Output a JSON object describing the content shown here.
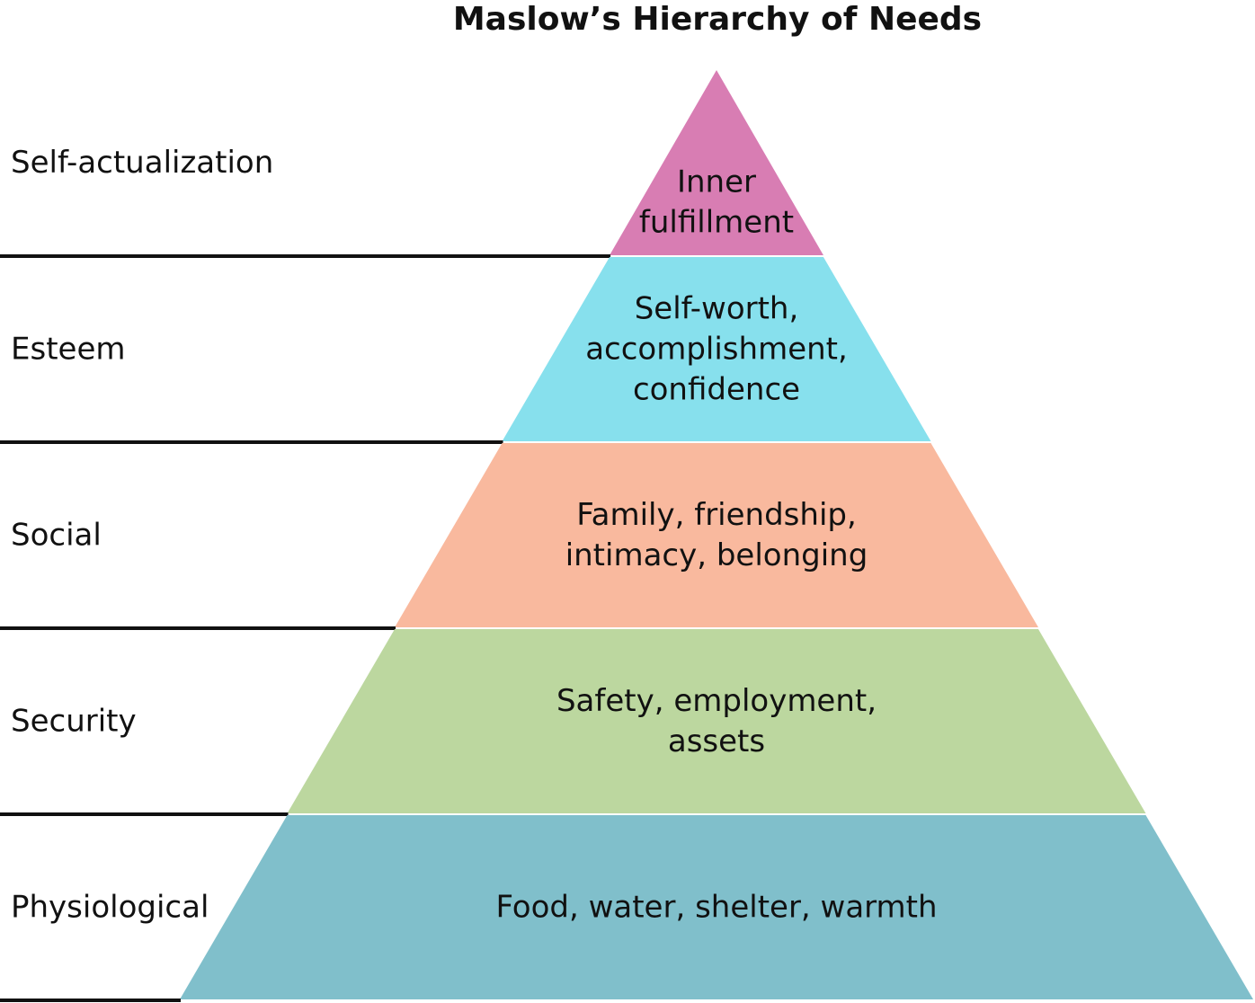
{
  "title": "Maslow’s Hierarchy of Needs",
  "levels": [
    {
      "label": "Self-actualization",
      "lines": [
        "Inner",
        "fulfillment"
      ],
      "color": "#d87db3"
    },
    {
      "label": "Esteem",
      "lines": [
        "Self-worth,",
        "accomplishment,",
        "confidence"
      ],
      "color": "#87e0ed"
    },
    {
      "label": "Social",
      "lines": [
        "Family, friendship,",
        "intimacy, belonging"
      ],
      "color": "#f9b99e"
    },
    {
      "label": "Security",
      "lines": [
        "Safety, employment,",
        "assets"
      ],
      "color": "#bcd79f"
    },
    {
      "label": "Physiological",
      "lines": [
        "Food, water, shelter, warmth"
      ],
      "color": "#80bfcb"
    }
  ]
}
